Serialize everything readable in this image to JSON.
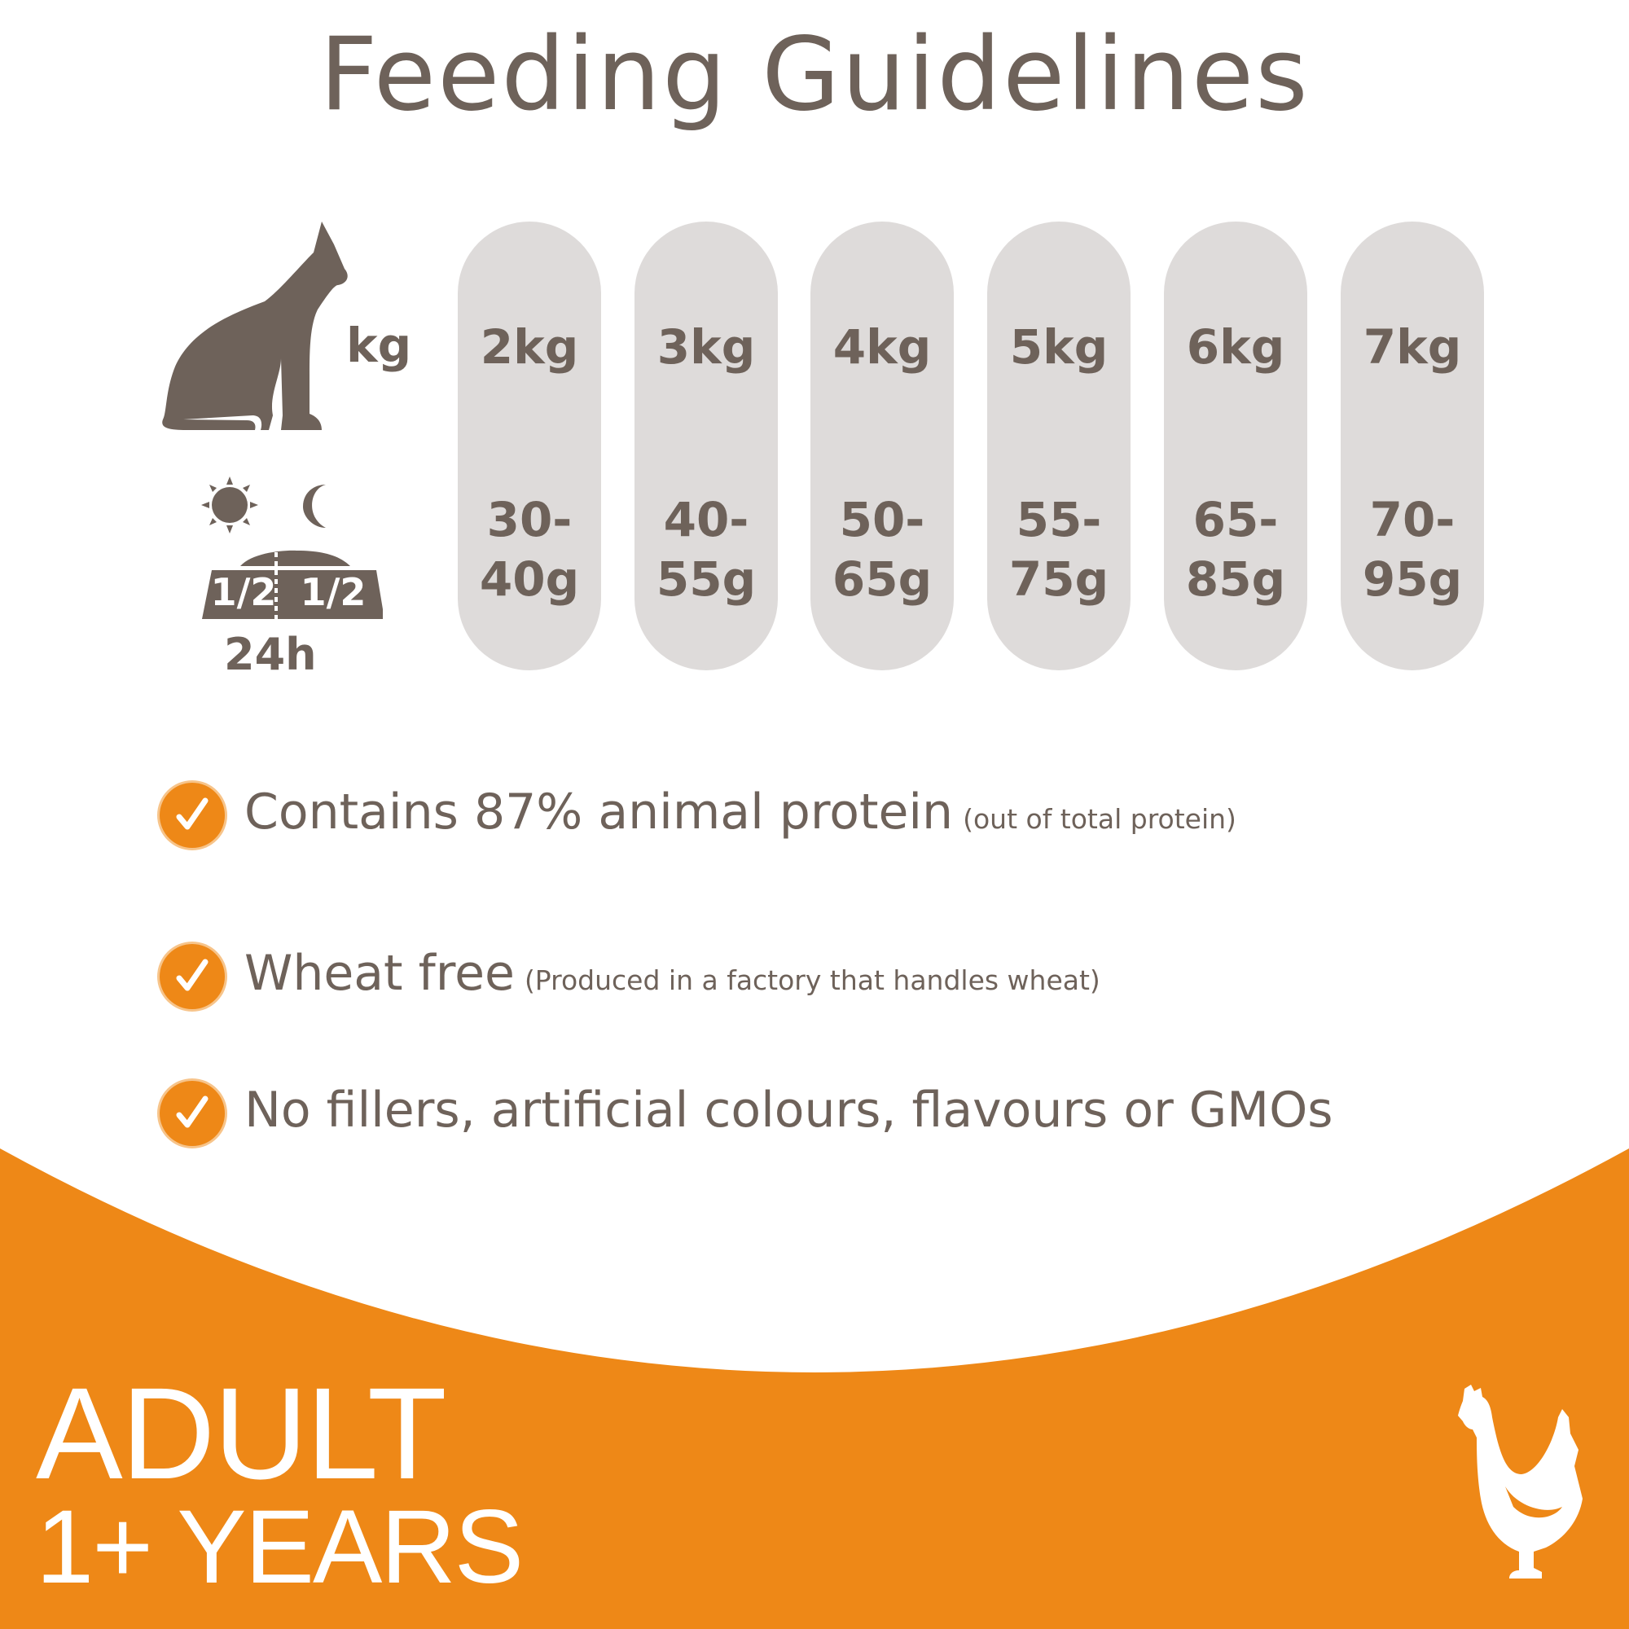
{
  "title": "Feeding Guidelines",
  "colors": {
    "text": "#6e625a",
    "accent": "#ee8817",
    "pill": "#dedbda"
  },
  "legend": {
    "weight_unit": "kg",
    "bowl_left": "1/2",
    "bowl_right": "1/2",
    "period": "24h",
    "icons": [
      "cat-icon",
      "sun-icon",
      "moon-icon",
      "food-bowl-icon"
    ]
  },
  "table": [
    {
      "weight": "2kg",
      "amount_line1": "30-",
      "amount_line2": "40g"
    },
    {
      "weight": "3kg",
      "amount_line1": "40-",
      "amount_line2": "55g"
    },
    {
      "weight": "4kg",
      "amount_line1": "50-",
      "amount_line2": "65g"
    },
    {
      "weight": "5kg",
      "amount_line1": "55-",
      "amount_line2": "75g"
    },
    {
      "weight": "6kg",
      "amount_line1": "65-",
      "amount_line2": "85g"
    },
    {
      "weight": "7kg",
      "amount_line1": "70-",
      "amount_line2": "95g"
    }
  ],
  "features": [
    {
      "text": "Contains 87% animal protein",
      "note": "(out of total protein)"
    },
    {
      "text": "Wheat free",
      "note": "(Produced in a factory that handles wheat)"
    },
    {
      "text": "No fillers, artificial colours, flavours or GMOs",
      "note": ""
    }
  ],
  "footer": {
    "life_stage": "ADULT",
    "age": "1+ YEARS",
    "icon": "chicken-icon"
  }
}
